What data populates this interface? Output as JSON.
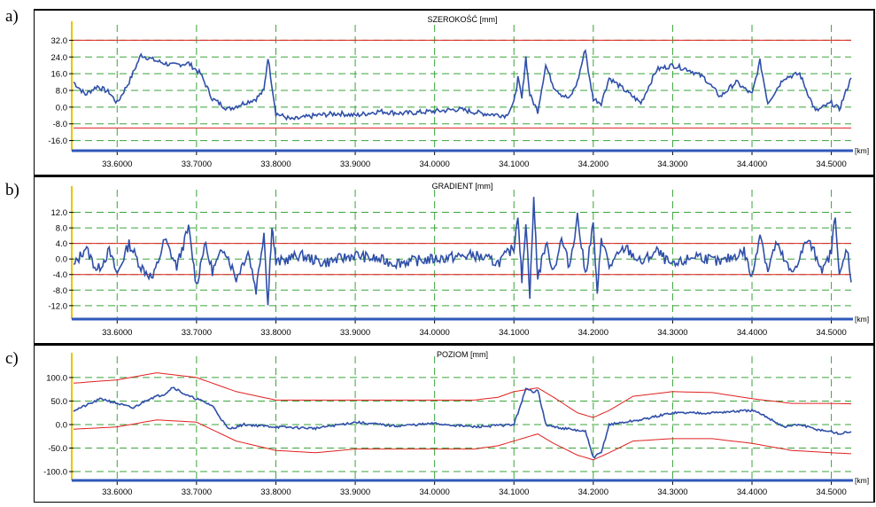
{
  "panel_letters": [
    "a)",
    "b)",
    "c)"
  ],
  "chart_data": [
    {
      "type": "line",
      "title": "SZEROKOŚĆ [mm]",
      "xlabel": "[km]",
      "ylabel": "",
      "xlim": [
        33.545,
        34.525
      ],
      "ylim": [
        -20,
        36
      ],
      "xticks": [
        "33.6000",
        "33.7000",
        "33.8000",
        "33.9000",
        "34.0000",
        "34.1000",
        "34.2000",
        "34.3000",
        "34.4000",
        "34.5000"
      ],
      "yticks": [
        "32.0",
        "24.0",
        "16.0",
        "8.0",
        "0.0",
        "-8.0",
        "-16.0"
      ],
      "grid": true,
      "limit_lines": [
        32,
        -10
      ],
      "colors": {
        "series": "#2f4fa8",
        "limit": "#e02020",
        "grid": "#3aa33a"
      },
      "series": [
        {
          "x": [
            33.545,
            33.56,
            33.575,
            33.59,
            33.6,
            33.615,
            33.63,
            33.65,
            33.67,
            33.69,
            33.705,
            33.72,
            33.74,
            33.76,
            33.775,
            33.785,
            33.79,
            33.8,
            33.82,
            33.85,
            33.88,
            33.9,
            33.93,
            33.96,
            34.0,
            34.03,
            34.06,
            34.09,
            34.1,
            34.105,
            34.11,
            34.115,
            34.12,
            34.13,
            34.14,
            34.15,
            34.16,
            34.17,
            34.18,
            34.19,
            34.195,
            34.2,
            34.21,
            34.22,
            34.24,
            34.26,
            34.28,
            34.3,
            34.32,
            34.34,
            34.36,
            34.38,
            34.4,
            34.41,
            34.42,
            34.44,
            34.46,
            34.48,
            34.5,
            34.51,
            34.525
          ],
          "y": [
            12,
            6,
            10,
            7,
            2,
            12,
            25,
            22,
            20,
            21,
            16,
            4,
            -1,
            2,
            4,
            8,
            24,
            -3,
            -6,
            -4,
            -3,
            -4,
            -2,
            -3,
            -2,
            -1,
            -3,
            -4,
            2,
            14,
            4,
            24,
            6,
            -2,
            20,
            10,
            6,
            4,
            12,
            28,
            14,
            4,
            2,
            14,
            8,
            2,
            18,
            20,
            18,
            14,
            5,
            12,
            6,
            22,
            2,
            14,
            16,
            -2,
            2,
            -1,
            14
          ]
        }
      ]
    },
    {
      "type": "line",
      "title": "GRADIENT [mm]",
      "xlabel": "[km]",
      "ylabel": "",
      "xlim": [
        33.545,
        34.525
      ],
      "ylim": [
        -15,
        16
      ],
      "xticks": [
        "33.6000",
        "33.7000",
        "33.8000",
        "33.9000",
        "34.0000",
        "34.1000",
        "34.2000",
        "34.3000",
        "34.4000",
        "34.5000"
      ],
      "yticks": [
        "12.0",
        "8.0",
        "4.0",
        "0.0",
        "-4.0",
        "-8.0",
        "-12.0"
      ],
      "grid": true,
      "limit_lines": [
        4,
        -4
      ],
      "colors": {
        "series": "#2f4fa8",
        "limit": "#e02020",
        "grid": "#3aa33a"
      },
      "series": [
        {
          "x": [
            33.545,
            33.56,
            33.575,
            33.59,
            33.6,
            33.615,
            33.63,
            33.645,
            33.66,
            33.675,
            33.69,
            33.7,
            33.71,
            33.72,
            33.735,
            33.75,
            33.765,
            33.775,
            33.785,
            33.79,
            33.795,
            33.8,
            33.83,
            33.86,
            33.9,
            33.95,
            34.0,
            34.05,
            34.08,
            34.1,
            34.105,
            34.11,
            34.115,
            34.12,
            34.125,
            34.13,
            34.14,
            34.15,
            34.16,
            34.17,
            34.18,
            34.19,
            34.2,
            34.205,
            34.21,
            34.22,
            34.24,
            34.26,
            34.28,
            34.3,
            34.33,
            34.36,
            34.39,
            34.4,
            34.41,
            34.42,
            34.43,
            34.45,
            34.47,
            34.49,
            34.5,
            34.505,
            34.51,
            34.52,
            34.525
          ],
          "y": [
            -2,
            3,
            -3,
            2,
            -4,
            4,
            -2,
            -5,
            5,
            -2,
            8,
            -7,
            4,
            -3,
            3,
            -5,
            2,
            -8,
            7,
            -12,
            9,
            -1,
            1,
            -1,
            1,
            -1,
            0,
            1,
            -1,
            3,
            12,
            -6,
            10,
            -9,
            15,
            -5,
            4,
            -3,
            5,
            -2,
            11,
            -4,
            9,
            -10,
            6,
            -2,
            3,
            -1,
            2,
            -2,
            1,
            -1,
            2,
            -5,
            7,
            -3,
            4,
            -4,
            5,
            -3,
            2,
            12,
            -5,
            3,
            -6
          ]
        }
      ]
    },
    {
      "type": "line",
      "title": "POZIOM [mm]",
      "xlabel": "[km]",
      "ylabel": "",
      "xlim": [
        33.545,
        34.525
      ],
      "ylim": [
        -115,
        130
      ],
      "xticks": [
        "33.6000",
        "33.7000",
        "33.8000",
        "33.9000",
        "34.0000",
        "34.1000",
        "34.2000",
        "34.3000",
        "34.4000",
        "34.5000"
      ],
      "yticks": [
        "100.0",
        "50.0",
        "0.0",
        "-50.0",
        "-100.0"
      ],
      "grid": true,
      "colors": {
        "series": "#2f4fa8",
        "limit": "#e02020",
        "grid": "#3aa33a"
      },
      "series": [
        {
          "name": "upper",
          "x": [
            33.545,
            33.6,
            33.65,
            33.7,
            33.75,
            33.8,
            33.85,
            33.9,
            33.95,
            34.0,
            34.05,
            34.08,
            34.1,
            34.13,
            34.15,
            34.18,
            34.2,
            34.22,
            34.25,
            34.3,
            34.35,
            34.4,
            34.45,
            34.5,
            34.525
          ],
          "y": [
            88,
            95,
            110,
            100,
            70,
            52,
            52,
            52,
            52,
            52,
            52,
            58,
            70,
            78,
            58,
            25,
            15,
            30,
            60,
            70,
            68,
            55,
            45,
            45,
            44
          ]
        },
        {
          "name": "mid",
          "x": [
            33.545,
            33.56,
            33.58,
            33.6,
            33.62,
            33.64,
            33.66,
            33.67,
            33.69,
            33.7,
            33.72,
            33.74,
            33.76,
            33.8,
            33.85,
            33.9,
            33.95,
            34.0,
            34.05,
            34.1,
            34.115,
            34.125,
            34.13,
            34.14,
            34.15,
            34.17,
            34.19,
            34.2,
            34.21,
            34.22,
            34.26,
            34.3,
            34.35,
            34.4,
            34.42,
            34.44,
            34.46,
            34.48,
            34.5,
            34.51,
            34.525
          ],
          "y": [
            30,
            40,
            55,
            45,
            35,
            55,
            65,
            80,
            60,
            55,
            40,
            -10,
            0,
            -5,
            -8,
            5,
            -3,
            2,
            -5,
            0,
            75,
            70,
            75,
            0,
            -5,
            -10,
            -15,
            -70,
            -60,
            0,
            10,
            25,
            25,
            30,
            15,
            -5,
            0,
            -10,
            -15,
            -20,
            -15
          ]
        },
        {
          "name": "lower",
          "x": [
            33.545,
            33.6,
            33.65,
            33.7,
            33.75,
            33.8,
            33.85,
            33.9,
            33.95,
            34.0,
            34.05,
            34.08,
            34.1,
            34.13,
            34.15,
            34.18,
            34.2,
            34.22,
            34.25,
            34.3,
            34.35,
            34.4,
            34.45,
            34.5,
            34.525
          ],
          "y": [
            -10,
            -5,
            10,
            5,
            -35,
            -55,
            -60,
            -52,
            -52,
            -52,
            -52,
            -45,
            -35,
            -20,
            -40,
            -65,
            -75,
            -60,
            -35,
            -30,
            -30,
            -40,
            -55,
            -60,
            -62
          ]
        }
      ]
    }
  ]
}
